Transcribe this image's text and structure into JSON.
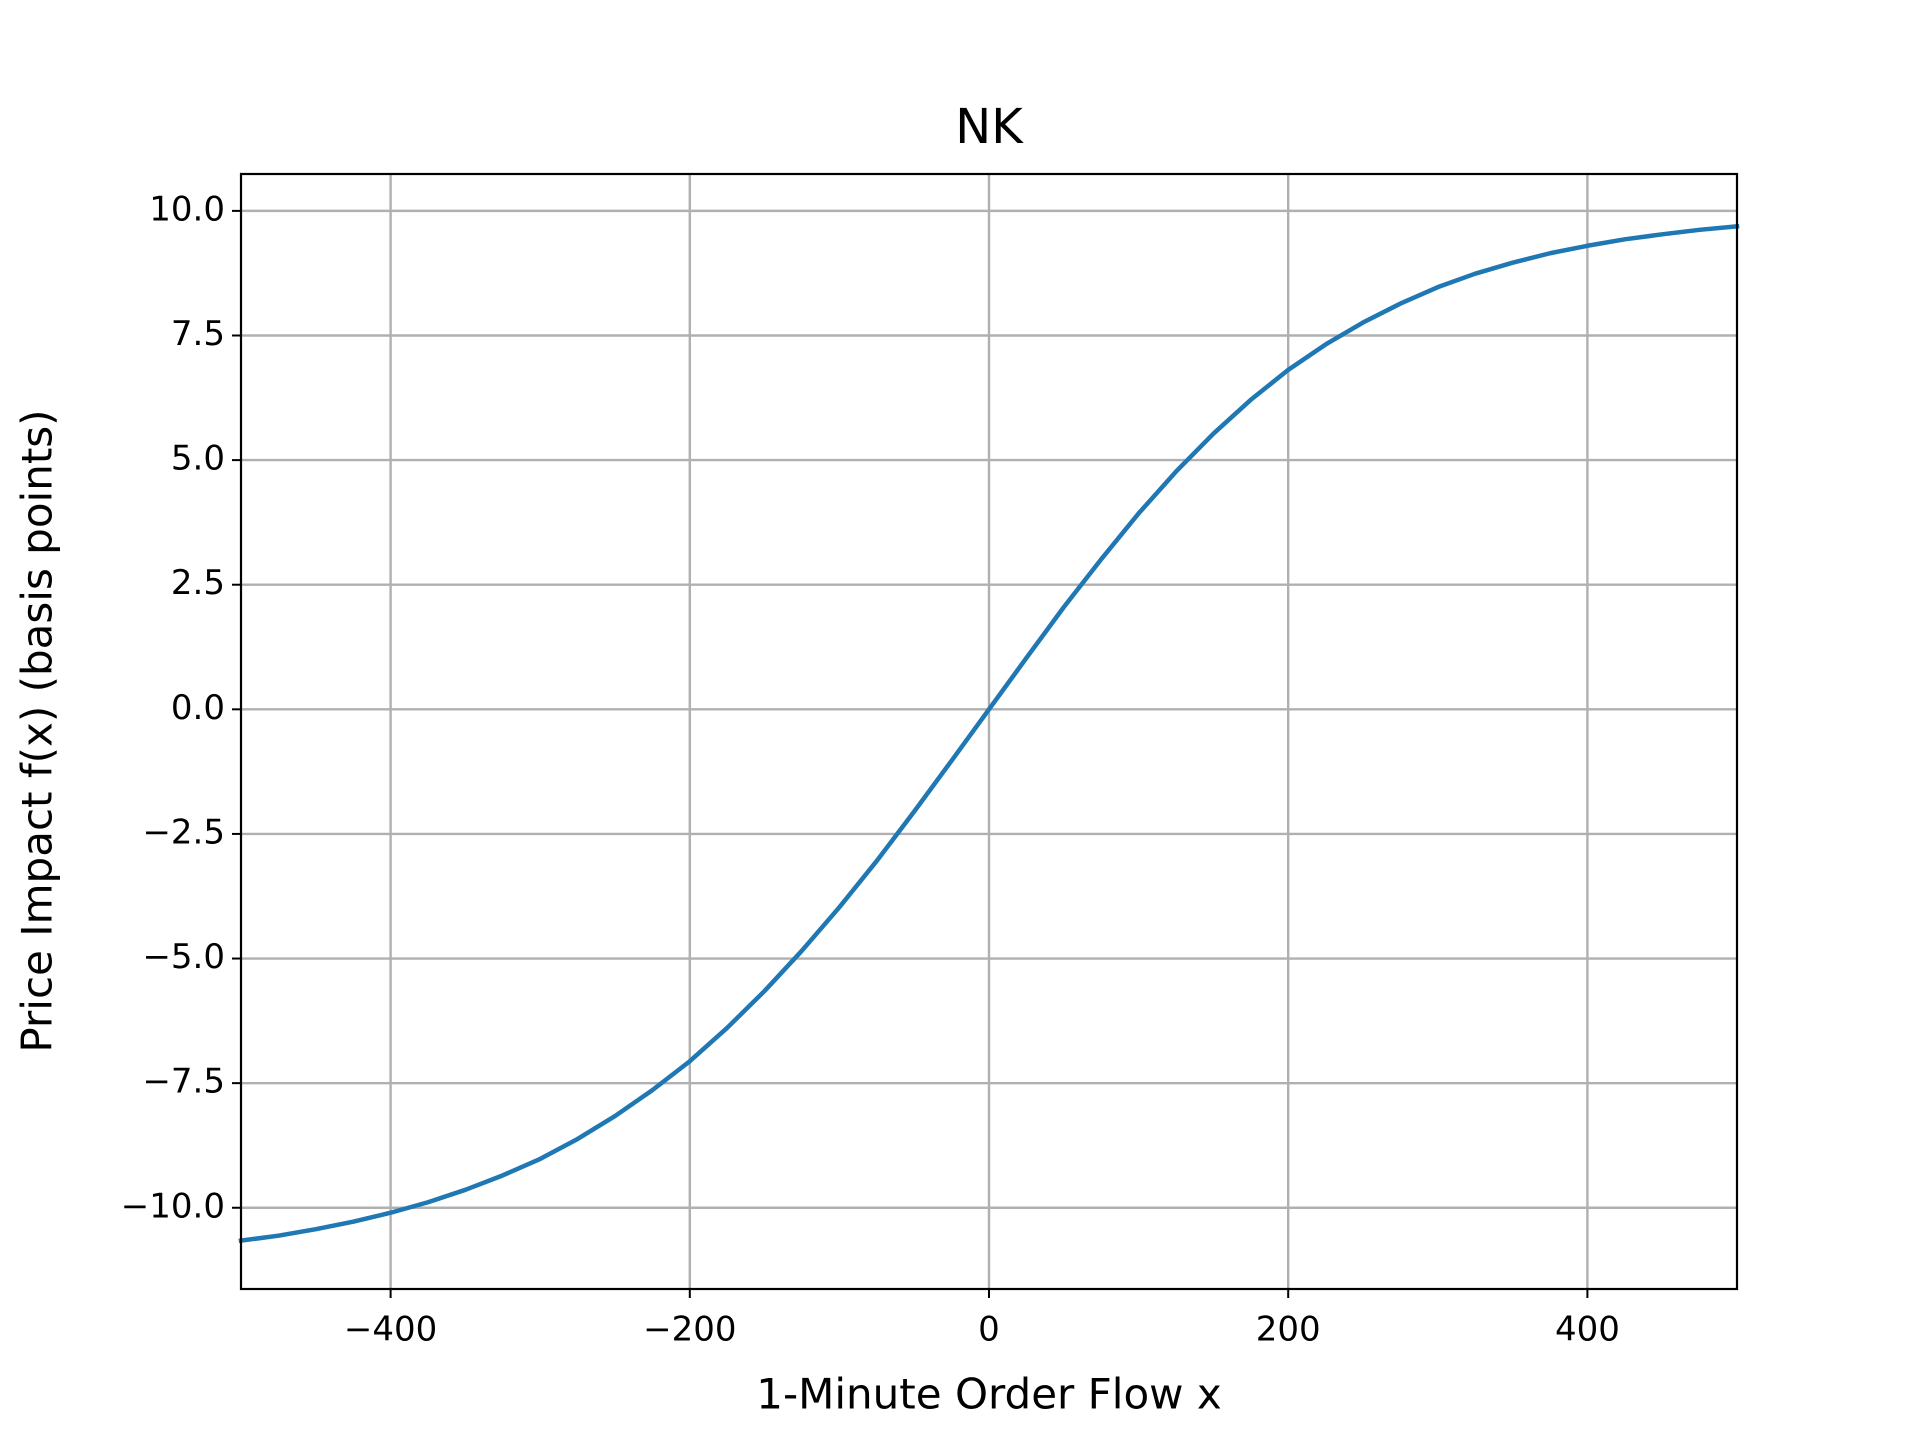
{
  "chart_data": {
    "type": "line",
    "title": "NK",
    "x_label": "1-Minute Order Flow x",
    "y_label": "Price Impact f(x) (basis points)",
    "x": [
      -500,
      -475,
      -450,
      -425,
      -400,
      -375,
      -350,
      -325,
      -300,
      -275,
      -250,
      -225,
      -200,
      -175,
      -150,
      -125,
      -100,
      -75,
      -50,
      -25,
      0,
      25,
      50,
      75,
      100,
      125,
      150,
      175,
      200,
      225,
      250,
      275,
      300,
      325,
      350,
      375,
      400,
      425,
      450,
      475,
      500
    ],
    "series": [
      {
        "color": "#1f77b4",
        "values": [
          -10.66,
          -10.56,
          -10.43,
          -10.28,
          -10.1,
          -9.89,
          -9.64,
          -9.35,
          -9.02,
          -8.62,
          -8.16,
          -7.64,
          -7.06,
          -6.39,
          -5.65,
          -4.84,
          -3.97,
          -3.04,
          -2.05,
          -1.03,
          0,
          1.03,
          2.05,
          3.01,
          3.93,
          4.77,
          5.53,
          6.21,
          6.81,
          7.32,
          7.76,
          8.14,
          8.47,
          8.74,
          8.96,
          9.15,
          9.3,
          9.43,
          9.53,
          9.62,
          9.69
        ]
      }
    ],
    "xlim": [
      -500,
      500
    ],
    "ylim": [
      -11.63,
      10.74
    ],
    "xticks": [
      {
        "value": -400,
        "label": "−400"
      },
      {
        "value": -200,
        "label": "−200"
      },
      0,
      200,
      400
    ],
    "yticks": [
      {
        "value": -10,
        "label": "−10.0"
      },
      {
        "value": -7.5,
        "label": "−7.5"
      },
      {
        "value": -5,
        "label": "−5.0"
      },
      {
        "value": -2.5,
        "label": "−2.5"
      },
      {
        "value": 0,
        "label": "0.0"
      },
      2.5,
      {
        "value": 5,
        "label": "5.0"
      },
      7.5,
      {
        "value": 10,
        "label": "10.0"
      }
    ],
    "grid": true
  }
}
